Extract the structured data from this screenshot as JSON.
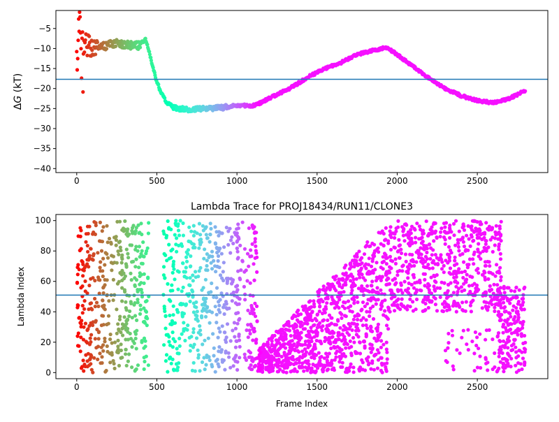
{
  "chart_data": [
    {
      "type": "scatter",
      "title": "",
      "xlabel": "",
      "ylabel": "ΔG (kT)",
      "ylabel_math": "G",
      "ylabel_prefix": "Δ",
      "ylabel_suffix": " (kT)",
      "xlim": [
        -130,
        2940
      ],
      "ylim": [
        -41,
        -0.5
      ],
      "xticks": [
        0,
        500,
        1000,
        1500,
        2000,
        2500
      ],
      "xtick_labels": [
        "0",
        "500",
        "1000",
        "1500",
        "2000",
        "2500"
      ],
      "yticks": [
        -5,
        -10,
        -15,
        -20,
        -25,
        -30,
        -35,
        -40
      ],
      "ytick_labels": [
        "−5",
        "−10",
        "−15",
        "−20",
        "−25",
        "−30",
        "−35",
        "−40"
      ],
      "hline": -17.7,
      "hline_color": "#1f77b4",
      "colormap": "rainbow",
      "grid": false,
      "trace_anchors": [
        [
          0,
          -10
        ],
        [
          15,
          -3
        ],
        [
          30,
          -8
        ],
        [
          50,
          -9
        ],
        [
          80,
          -10
        ],
        [
          120,
          -9
        ],
        [
          180,
          -9.5
        ],
        [
          250,
          -8.5
        ],
        [
          300,
          -9
        ],
        [
          380,
          -9.3
        ],
        [
          430,
          -7.8
        ],
        [
          460,
          -12
        ],
        [
          490,
          -17
        ],
        [
          520,
          -20.5
        ],
        [
          560,
          -23.5
        ],
        [
          620,
          -25
        ],
        [
          700,
          -25.2
        ],
        [
          800,
          -25
        ],
        [
          900,
          -24.8
        ],
        [
          1000,
          -24.2
        ],
        [
          1100,
          -24.3
        ],
        [
          1150,
          -23.5
        ],
        [
          1250,
          -21.5
        ],
        [
          1350,
          -19.5
        ],
        [
          1450,
          -17
        ],
        [
          1550,
          -15
        ],
        [
          1650,
          -13.5
        ],
        [
          1750,
          -11.5
        ],
        [
          1850,
          -10.5
        ],
        [
          1930,
          -9.7
        ],
        [
          2000,
          -11.5
        ],
        [
          2100,
          -14.5
        ],
        [
          2200,
          -17.5
        ],
        [
          2300,
          -20
        ],
        [
          2400,
          -21.8
        ],
        [
          2500,
          -23
        ],
        [
          2600,
          -23.6
        ],
        [
          2700,
          -22.5
        ],
        [
          2800,
          -20.5
        ]
      ]
    },
    {
      "type": "scatter",
      "title": "Lambda Trace for PROJ18434/RUN11/CLONE3",
      "xlabel": "Frame Index",
      "ylabel": "Lambda Index",
      "xlim": [
        -130,
        2940
      ],
      "ylim": [
        -4,
        104
      ],
      "xticks": [
        0,
        500,
        1000,
        1500,
        2000,
        2500
      ],
      "xtick_labels": [
        "0",
        "500",
        "1000",
        "1500",
        "2000",
        "2500"
      ],
      "yticks": [
        0,
        20,
        40,
        60,
        80,
        100
      ],
      "ytick_labels": [
        "0",
        "20",
        "40",
        "60",
        "80",
        "100"
      ],
      "hline": 51,
      "hline_color": "#1f77b4",
      "colormap": "rainbow",
      "grid": false,
      "segments": [
        {
          "x": [
            0,
            120
          ],
          "y": [
            0,
            100
          ],
          "n": 120
        },
        {
          "x": [
            120,
            450
          ],
          "y": [
            0,
            100
          ],
          "n": 300
        },
        {
          "x": [
            540,
            1130
          ],
          "y": [
            0,
            100
          ],
          "n": 520
        },
        {
          "x": [
            1130,
            1950
          ],
          "y": [
            0,
            100
          ],
          "upper_from": 15,
          "upper_to": 100,
          "n": 1000
        },
        {
          "x": [
            1950,
            2650
          ],
          "y": [
            40,
            100
          ],
          "n": 600
        },
        {
          "x": [
            2300,
            2620
          ],
          "y": [
            0,
            30
          ],
          "n": 40
        },
        {
          "x": [
            2620,
            2800
          ],
          "y": [
            0,
            58
          ],
          "n": 200
        }
      ]
    }
  ]
}
